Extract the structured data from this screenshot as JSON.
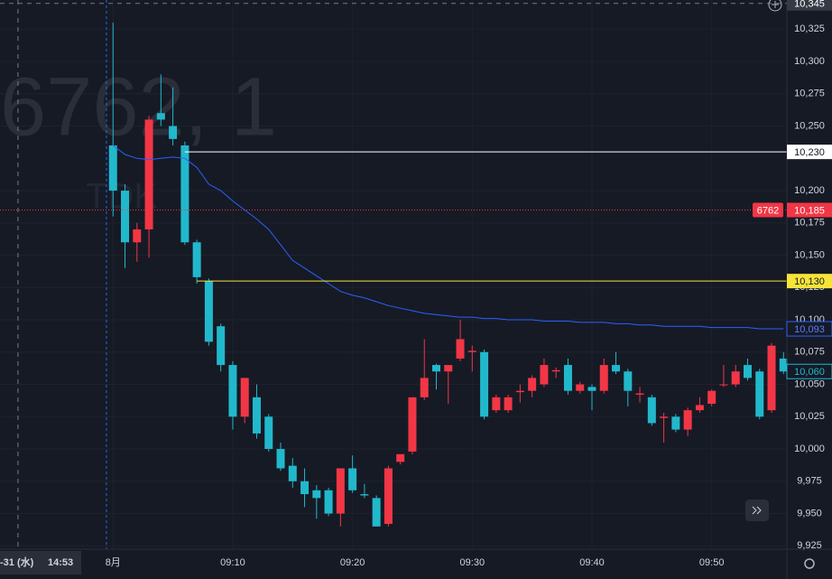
{
  "chart_data": {
    "type": "candlestick",
    "watermark": "6762, 1",
    "watermark_sub": "TDK",
    "x": [
      0,
      1,
      2,
      3,
      4,
      5,
      6,
      7,
      8,
      9,
      10,
      11,
      12,
      13,
      14,
      15,
      16,
      17,
      18,
      19,
      20,
      21,
      22,
      23,
      24,
      25,
      26,
      27,
      28,
      29,
      30,
      31,
      32,
      33,
      34,
      35,
      36,
      37,
      38,
      39,
      40,
      41,
      42,
      43,
      44,
      45,
      46,
      47,
      48,
      49,
      50,
      51,
      52,
      53,
      54,
      55,
      56
    ],
    "open": [
      10235,
      10200,
      10160,
      10170,
      10260,
      10250,
      10235,
      10160,
      10130,
      10095,
      10065,
      10025,
      10040,
      10025,
      10000,
      9987,
      9975,
      9968,
      9968,
      9950,
      9985,
      9965,
      9962,
      9942,
      9990,
      9998,
      10040,
      10065,
      10060,
      10070,
      10075,
      10075,
      10030,
      10030,
      10044,
      10045,
      10050,
      10060,
      10065,
      10045,
      10048,
      10045,
      10065,
      10060,
      10042,
      10040,
      10024,
      10025,
      10015,
      10030,
      10035,
      10050,
      10050,
      10065,
      10060,
      10030,
      10070
    ],
    "high": [
      10330,
      10205,
      10175,
      10258,
      10290,
      10280,
      10238,
      10162,
      10132,
      10097,
      10068,
      10055,
      10050,
      10027,
      10005,
      9993,
      9985,
      9972,
      9970,
      9985,
      9995,
      9973,
      9964,
      9987,
      9995,
      10040,
      10085,
      10066,
      10065,
      10100,
      10080,
      10077,
      10042,
      10042,
      10050,
      10057,
      10070,
      10063,
      10070,
      10052,
      10050,
      10070,
      10075,
      10062,
      10048,
      10042,
      10028,
      10027,
      10032,
      10040,
      10046,
      10065,
      10065,
      10070,
      10062,
      10082,
      10075
    ],
    "low": [
      10180,
      10140,
      10145,
      10148,
      10250,
      10235,
      10158,
      10128,
      10080,
      10060,
      10015,
      10020,
      10008,
      9998,
      9983,
      9970,
      9955,
      9946,
      9948,
      9940,
      9966,
      9962,
      9940,
      9940,
      9988,
      9996,
      10038,
      10046,
      10035,
      10068,
      10060,
      10023,
      10028,
      10028,
      10036,
      10040,
      10048,
      10055,
      10042,
      10043,
      10030,
      10043,
      10058,
      10033,
      10036,
      10018,
      10005,
      10013,
      10010,
      10028,
      10033,
      10048,
      10048,
      10053,
      10023,
      10028,
      10058
    ],
    "close": [
      10200,
      10160,
      10170,
      10255,
      10255,
      10240,
      10160,
      10133,
      10083,
      10065,
      10025,
      10055,
      10012,
      10000,
      9985,
      9975,
      9965,
      9962,
      9950,
      9985,
      9968,
      9964,
      9940,
      9985,
      9996,
      10040,
      10055,
      10060,
      10065,
      10085,
      10076,
      10025,
      10040,
      10040,
      10045,
      10055,
      10065,
      10061,
      10045,
      10050,
      10045,
      10065,
      10060,
      10045,
      10043,
      10020,
      10025,
      10015,
      10030,
      10034,
      10045,
      10050,
      10060,
      10055,
      10025,
      10080,
      10060
    ],
    "up_color": "#f23645",
    "down_color": "#22b8cc",
    "last_label": "10,060",
    "overlay": {
      "color": "#2962ff",
      "last_label": "10,093",
      "values": [
        10235,
        10228,
        10225,
        10224,
        10225,
        10226,
        10225,
        10218,
        10205,
        10200,
        10192,
        10185,
        10178,
        10170,
        10158,
        10146,
        10140,
        10134,
        10128,
        10122,
        10119,
        10117,
        10114,
        10111,
        10109,
        10107,
        10105,
        10104,
        10103,
        10102,
        10102,
        10101,
        10101,
        10100,
        10100,
        10100,
        10099,
        10099,
        10099,
        10098,
        10098,
        10098,
        10097,
        10097,
        10096,
        10096,
        10095,
        10095,
        10095,
        10095,
        10094,
        10094,
        10094,
        10094,
        10093,
        10093,
        10093
      ]
    },
    "price_lines": [
      {
        "value": 10230,
        "label": "10,230",
        "color": "#ffffff",
        "start": 6
      },
      {
        "value": 10130,
        "label": "10,130",
        "color": "#f7e43a",
        "start": 7
      },
      {
        "value": 10185,
        "label": "10,185",
        "symbol": "6762",
        "color": "#f23645",
        "start": -9.44
      }
    ],
    "crosshair": {
      "value": 10345,
      "label": "10,345",
      "x": -7.94
    },
    "session_break_x": -0.55,
    "date_label": "-31 (水)",
    "time_label": "14:53",
    "xlim": [
      -9.44,
      56.28
    ],
    "ylim": [
      9922.4,
      10347.6
    ],
    "yticks": [
      {
        "value": 9925,
        "label": "9,925"
      },
      {
        "value": 9950,
        "label": "9,950"
      },
      {
        "value": 9975,
        "label": "9,975"
      },
      {
        "value": 10000,
        "label": "10,000"
      },
      {
        "value": 10025,
        "label": "10,025"
      },
      {
        "value": 10050,
        "label": "10,050"
      },
      {
        "value": 10075,
        "label": "10,075"
      },
      {
        "value": 10100,
        "label": "10,100"
      },
      {
        "value": 10125,
        "label": "10,125"
      },
      {
        "value": 10150,
        "label": "10,150"
      },
      {
        "value": 10175,
        "label": "10,175"
      },
      {
        "value": 10200,
        "label": "10,200"
      },
      {
        "value": 10250,
        "label": "10,250"
      },
      {
        "value": 10275,
        "label": "10,275"
      },
      {
        "value": 10300,
        "label": "10,300"
      },
      {
        "value": 10325,
        "label": "10,325"
      }
    ],
    "xticks": [
      {
        "value": 0,
        "label": "8月"
      },
      {
        "value": 10,
        "label": "09:10"
      },
      {
        "value": 20,
        "label": "09:20"
      },
      {
        "value": 30,
        "label": "09:30"
      },
      {
        "value": 40,
        "label": "09:40"
      },
      {
        "value": 50,
        "label": "09:50"
      }
    ]
  }
}
